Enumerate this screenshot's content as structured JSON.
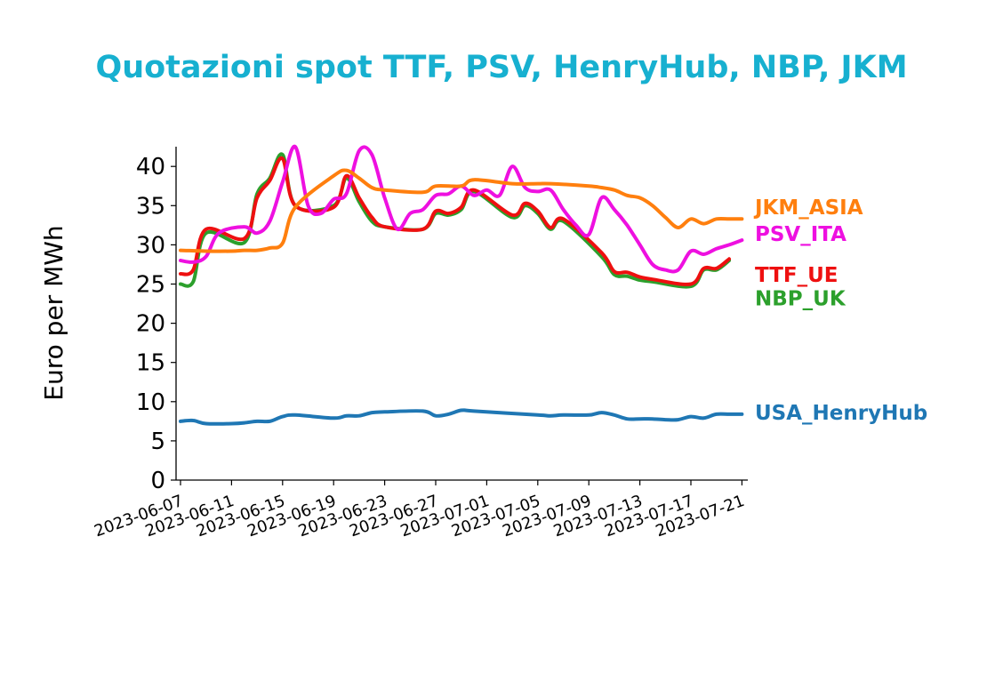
{
  "chart_data": {
    "type": "line",
    "title": "Quotazioni spot TTF, PSV, HenryHub, NBP, JKM",
    "xlabel": "",
    "ylabel": "Euro per MWh",
    "ylim": [
      0,
      42.5
    ],
    "yticks": [
      "0",
      "5",
      "10",
      "15",
      "20",
      "25",
      "30",
      "35",
      "40"
    ],
    "xticks": [
      "2023-06-07",
      "2023-06-11",
      "2023-06-15",
      "2023-06-19",
      "2023-06-23",
      "2023-06-27",
      "2023-07-01",
      "2023-07-05",
      "2023-07-09",
      "2023-07-13",
      "2023-07-17",
      "2023-07-21"
    ],
    "xrange": [
      "2023-06-07",
      "2023-07-21"
    ],
    "grid": false,
    "legend": "right",
    "colors": {
      "title": "#17b0d0",
      "JKM_ASIA": "#ff7f0e",
      "PSV_ITA": "#ee10e0",
      "TTF_UE": "#ee1010",
      "NBP_UK": "#2ca02c",
      "USA_HenryHub": "#1f77b4"
    },
    "series": [
      {
        "name": "NBP_UK",
        "x": [
          "2023-06-07",
          "2023-06-08",
          "2023-06-09",
          "2023-06-12",
          "2023-06-13",
          "2023-06-14",
          "2023-06-15",
          "2023-06-16",
          "2023-06-19",
          "2023-06-20",
          "2023-06-21",
          "2023-06-22",
          "2023-06-23",
          "2023-06-26",
          "2023-06-27",
          "2023-06-28",
          "2023-06-29",
          "2023-06-30",
          "2023-07-03",
          "2023-07-04",
          "2023-07-05",
          "2023-07-06",
          "2023-07-07",
          "2023-07-10",
          "2023-07-11",
          "2023-07-12",
          "2023-07-13",
          "2023-07-14",
          "2023-07-17",
          "2023-07-18",
          "2023-07-19",
          "2023-07-20"
        ],
        "values": [
          25.0,
          25.3,
          31.5,
          30.3,
          36.5,
          38.5,
          41.5,
          35.0,
          35.0,
          38.5,
          35.5,
          33.0,
          32.3,
          32.0,
          34.0,
          33.8,
          34.5,
          36.8,
          33.5,
          35.0,
          34.0,
          32.0,
          33.0,
          28.5,
          26.2,
          26.0,
          25.5,
          25.3,
          24.7,
          26.8,
          26.8,
          28.0
        ]
      },
      {
        "name": "TTF_UE",
        "x": [
          "2023-06-07",
          "2023-06-08",
          "2023-06-09",
          "2023-06-12",
          "2023-06-13",
          "2023-06-14",
          "2023-06-15",
          "2023-06-16",
          "2023-06-19",
          "2023-06-20",
          "2023-06-21",
          "2023-06-22",
          "2023-06-23",
          "2023-06-26",
          "2023-06-27",
          "2023-06-28",
          "2023-06-29",
          "2023-06-30",
          "2023-07-03",
          "2023-07-04",
          "2023-07-05",
          "2023-07-06",
          "2023-07-07",
          "2023-07-10",
          "2023-07-11",
          "2023-07-12",
          "2023-07-13",
          "2023-07-14",
          "2023-07-17",
          "2023-07-18",
          "2023-07-19",
          "2023-07-20"
        ],
        "values": [
          26.3,
          26.8,
          32.0,
          30.8,
          36.0,
          38.2,
          41.0,
          35.0,
          34.8,
          38.8,
          36.0,
          33.5,
          32.3,
          32.0,
          34.3,
          34.0,
          34.8,
          37.0,
          33.8,
          35.3,
          34.3,
          32.2,
          33.3,
          29.0,
          26.6,
          26.5,
          25.9,
          25.6,
          25.0,
          27.0,
          27.0,
          28.2
        ]
      },
      {
        "name": "PSV_ITA",
        "x": [
          "2023-06-07",
          "2023-06-08",
          "2023-06-09",
          "2023-06-10",
          "2023-06-12",
          "2023-06-13",
          "2023-06-14",
          "2023-06-15",
          "2023-06-16",
          "2023-06-17",
          "2023-06-18",
          "2023-06-19",
          "2023-06-20",
          "2023-06-21",
          "2023-06-22",
          "2023-06-23",
          "2023-06-24",
          "2023-06-25",
          "2023-06-26",
          "2023-06-27",
          "2023-06-28",
          "2023-06-29",
          "2023-06-30",
          "2023-07-01",
          "2023-07-02",
          "2023-07-03",
          "2023-07-04",
          "2023-07-05",
          "2023-07-06",
          "2023-07-07",
          "2023-07-08",
          "2023-07-09",
          "2023-07-10",
          "2023-07-11",
          "2023-07-12",
          "2023-07-13",
          "2023-07-14",
          "2023-07-15",
          "2023-07-16",
          "2023-07-17",
          "2023-07-18",
          "2023-07-19",
          "2023-07-20",
          "2023-07-21"
        ],
        "values": [
          28.0,
          27.8,
          28.5,
          31.5,
          32.3,
          31.5,
          33.0,
          38.0,
          42.5,
          35.0,
          34.0,
          35.8,
          36.5,
          42.0,
          41.5,
          36.0,
          32.0,
          34.0,
          34.5,
          36.3,
          36.5,
          37.5,
          36.3,
          37.0,
          36.3,
          40.0,
          37.3,
          36.8,
          37.0,
          34.5,
          32.5,
          31.3,
          36.0,
          34.5,
          32.5,
          30.0,
          27.5,
          26.8,
          26.8,
          29.2,
          28.8,
          29.5,
          30.0,
          30.6
        ]
      },
      {
        "name": "JKM_ASIA",
        "x": [
          "2023-06-07",
          "2023-06-09",
          "2023-06-11",
          "2023-06-12",
          "2023-06-13",
          "2023-06-14",
          "2023-06-15",
          "2023-06-16",
          "2023-06-19",
          "2023-06-20",
          "2023-06-21",
          "2023-06-22",
          "2023-06-23",
          "2023-06-26",
          "2023-06-27",
          "2023-06-29",
          "2023-06-30",
          "2023-07-03",
          "2023-07-05",
          "2023-07-06",
          "2023-07-09",
          "2023-07-10",
          "2023-07-11",
          "2023-07-12",
          "2023-07-13",
          "2023-07-14",
          "2023-07-15",
          "2023-07-16",
          "2023-07-17",
          "2023-07-18",
          "2023-07-19",
          "2023-07-20",
          "2023-07-21"
        ],
        "values": [
          29.3,
          29.2,
          29.2,
          29.3,
          29.3,
          29.6,
          30.2,
          34.8,
          38.8,
          39.5,
          38.5,
          37.3,
          37.0,
          36.7,
          37.5,
          37.5,
          38.3,
          37.8,
          37.8,
          37.8,
          37.5,
          37.3,
          37.0,
          36.3,
          36.0,
          35.0,
          33.5,
          32.2,
          33.3,
          32.7,
          33.3,
          33.3,
          33.3
        ]
      },
      {
        "name": "USA_HenryHub",
        "x": [
          "2023-06-07",
          "2023-06-08",
          "2023-06-09",
          "2023-06-11",
          "2023-06-12",
          "2023-06-13",
          "2023-06-14",
          "2023-06-15",
          "2023-06-16",
          "2023-06-19",
          "2023-06-20",
          "2023-06-21",
          "2023-06-22",
          "2023-06-23",
          "2023-06-26",
          "2023-06-27",
          "2023-06-28",
          "2023-06-29",
          "2023-06-30",
          "2023-07-05",
          "2023-07-06",
          "2023-07-07",
          "2023-07-09",
          "2023-07-10",
          "2023-07-11",
          "2023-07-12",
          "2023-07-13",
          "2023-07-14",
          "2023-07-15",
          "2023-07-16",
          "2023-07-17",
          "2023-07-18",
          "2023-07-19",
          "2023-07-20",
          "2023-07-21"
        ],
        "values": [
          7.5,
          7.6,
          7.2,
          7.2,
          7.3,
          7.5,
          7.5,
          8.1,
          8.3,
          7.9,
          8.2,
          8.2,
          8.6,
          8.7,
          8.8,
          8.2,
          8.4,
          8.9,
          8.8,
          8.3,
          8.2,
          8.3,
          8.3,
          8.6,
          8.3,
          7.8,
          7.8,
          7.8,
          7.7,
          7.7,
          8.1,
          7.9,
          8.4,
          8.4,
          8.4
        ]
      }
    ],
    "labels": [
      {
        "text": "JKM_ASIA",
        "series": "JKM_ASIA"
      },
      {
        "text": "PSV_ITA",
        "series": "PSV_ITA"
      },
      {
        "text": "TTF_UE",
        "series": "TTF_UE"
      },
      {
        "text": "NBP_UK",
        "series": "NBP_UK"
      },
      {
        "text": "USA_HenryHub",
        "series": "USA_HenryHub"
      }
    ]
  }
}
